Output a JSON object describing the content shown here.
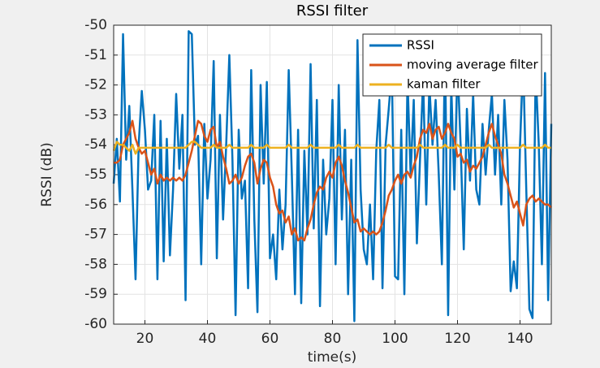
{
  "chart_data": {
    "type": "line",
    "title": "RSSI filter",
    "xlabel": "time(s)",
    "ylabel": "RSSI (dB)",
    "x": [
      10,
      11,
      12,
      13,
      14,
      15,
      16,
      17,
      18,
      19,
      20,
      21,
      22,
      23,
      24,
      25,
      26,
      27,
      28,
      29,
      30,
      31,
      32,
      33,
      34,
      35,
      36,
      37,
      38,
      39,
      40,
      41,
      42,
      43,
      44,
      45,
      46,
      47,
      48,
      49,
      50,
      51,
      52,
      53,
      54,
      55,
      56,
      57,
      58,
      59,
      60,
      61,
      62,
      63,
      64,
      65,
      66,
      67,
      68,
      69,
      70,
      71,
      72,
      73,
      74,
      75,
      76,
      77,
      78,
      79,
      80,
      81,
      82,
      83,
      84,
      85,
      86,
      87,
      88,
      89,
      90,
      91,
      92,
      93,
      94,
      95,
      96,
      97,
      98,
      99,
      100,
      101,
      102,
      103,
      104,
      105,
      106,
      107,
      108,
      109,
      110,
      111,
      112,
      113,
      114,
      115,
      116,
      117,
      118,
      119,
      120,
      121,
      122,
      123,
      124,
      125,
      126,
      127,
      128,
      129,
      130,
      131,
      132,
      133,
      134,
      135,
      136,
      137,
      138,
      139,
      140,
      141,
      142,
      143,
      144,
      145,
      146,
      147,
      148,
      149,
      150
    ],
    "series": [
      {
        "name": "RSSI",
        "color": "#0072BD",
        "values": [
          -55.3,
          -53.8,
          -55.9,
          -50.3,
          -54.5,
          -52.7,
          -55.5,
          -58.5,
          -54.0,
          -52.2,
          -53.5,
          -55.5,
          -55.2,
          -53.0,
          -58.5,
          -53.2,
          -57.9,
          -53.8,
          -57.7,
          -55.5,
          -52.3,
          -54.8,
          -53.0,
          -59.2,
          -50.2,
          -50.3,
          -54.0,
          -53.7,
          -58.0,
          -53.3,
          -55.8,
          -54.5,
          -51.2,
          -57.8,
          -53.0,
          -56.5,
          -54.0,
          -51.0,
          -54.5,
          -59.7,
          -53.5,
          -55.8,
          -55.2,
          -58.8,
          -51.5,
          -56.5,
          -59.6,
          -52.0,
          -55.3,
          -51.9,
          -57.8,
          -57.0,
          -58.5,
          -55.5,
          -57.5,
          -56.0,
          -51.5,
          -55.0,
          -59.0,
          -53.5,
          -59.3,
          -54.2,
          -57.0,
          -51.3,
          -56.8,
          -52.5,
          -59.4,
          -54.5,
          -57.0,
          -55.8,
          -52.5,
          -58.0,
          -52.0,
          -56.5,
          -53.5,
          -59.0,
          -54.5,
          -59.9,
          -50.5,
          -55.5,
          -57.5,
          -58.0,
          -56.0,
          -58.5,
          -54.2,
          -52.5,
          -58.8,
          -54.0,
          -52.8,
          -51.5,
          -58.4,
          -58.5,
          -53.5,
          -59.0,
          -51.8,
          -55.0,
          -52.5,
          -57.3,
          -54.5,
          -51.8,
          -56.0,
          -52.0,
          -54.0,
          -52.5,
          -55.0,
          -58.0,
          -50.6,
          -59.7,
          -52.0,
          -55.5,
          -51.3,
          -54.0,
          -57.5,
          -52.8,
          -55.2,
          -52.3,
          -55.5,
          -56.0,
          -53.3,
          -55.0,
          -53.5,
          -52.3,
          -55.0,
          -53.0,
          -56.0,
          -52.5,
          -54.5,
          -58.9,
          -57.9,
          -58.8,
          -54.0,
          -51.2,
          -55.5,
          -59.5,
          -59.8,
          -51.5,
          -54.0,
          -58.0,
          -51.6,
          -59.2,
          -53.3
        ]
      },
      {
        "name": "moving average filter",
        "color": "#D95319",
        "values": [
          -54.6,
          -54.6,
          -54.5,
          -54.0,
          -53.8,
          -53.6,
          -53.2,
          -53.8,
          -54.1,
          -54.3,
          -54.2,
          -54.6,
          -55.0,
          -54.8,
          -55.3,
          -55.0,
          -55.2,
          -55.1,
          -55.2,
          -55.1,
          -55.2,
          -55.1,
          -55.2,
          -55.0,
          -54.6,
          -54.2,
          -53.7,
          -53.2,
          -53.3,
          -53.7,
          -53.9,
          -53.5,
          -53.4,
          -54.1,
          -53.9,
          -54.4,
          -54.8,
          -55.3,
          -55.2,
          -55.0,
          -55.3,
          -55.1,
          -54.7,
          -54.4,
          -54.3,
          -54.6,
          -55.3,
          -54.8,
          -54.5,
          -54.6,
          -55.1,
          -55.4,
          -56.0,
          -56.3,
          -56.2,
          -56.6,
          -56.4,
          -57.0,
          -56.8,
          -57.2,
          -57.1,
          -57.2,
          -56.8,
          -56.5,
          -56.0,
          -55.6,
          -55.4,
          -55.5,
          -55.1,
          -54.9,
          -55.1,
          -54.6,
          -54.4,
          -54.7,
          -55.2,
          -55.6,
          -56.1,
          -56.6,
          -56.5,
          -56.9,
          -56.8,
          -56.9,
          -57.0,
          -56.9,
          -57.0,
          -56.9,
          -56.6,
          -56.2,
          -55.7,
          -55.5,
          -55.2,
          -55.0,
          -55.3,
          -55.0,
          -54.9,
          -55.1,
          -54.7,
          -54.4,
          -53.8,
          -53.5,
          -53.6,
          -53.3,
          -53.8,
          -53.5,
          -53.4,
          -53.8,
          -53.6,
          -53.3,
          -53.6,
          -53.8,
          -54.4,
          -54.3,
          -54.6,
          -54.5,
          -54.9,
          -54.7,
          -54.8,
          -54.6,
          -54.4,
          -54.0,
          -53.6,
          -53.3,
          -53.7,
          -54.0,
          -54.3,
          -55.0,
          -55.3,
          -55.7,
          -56.1,
          -55.9,
          -56.3,
          -56.7,
          -56.0,
          -55.8,
          -55.7,
          -55.9,
          -55.8,
          -55.9,
          -56.0,
          -56.0,
          -56.1
        ]
      },
      {
        "name": "kaman filter",
        "color": "#EDB120",
        "values": [
          -54.2,
          -53.9,
          -54.0,
          -54.0,
          -54.1,
          -54.2,
          -54.0,
          -54.3,
          -54.1,
          -54.1,
          -54.1,
          -54.1,
          -54.1,
          -54.1,
          -54.1,
          -54.1,
          -54.1,
          -54.1,
          -54.1,
          -54.1,
          -54.1,
          -54.1,
          -54.1,
          -54.1,
          -54.0,
          -53.9,
          -53.9,
          -54.0,
          -54.1,
          -54.1,
          -54.1,
          -54.1,
          -54.0,
          -54.1,
          -54.1,
          -54.1,
          -54.1,
          -54.0,
          -54.1,
          -54.1,
          -54.1,
          -54.1,
          -54.1,
          -54.1,
          -54.0,
          -54.1,
          -54.1,
          -54.1,
          -54.1,
          -54.0,
          -54.1,
          -54.1,
          -54.1,
          -54.1,
          -54.1,
          -54.1,
          -54.0,
          -54.1,
          -54.1,
          -54.1,
          -54.1,
          -54.1,
          -54.1,
          -54.0,
          -54.1,
          -54.1,
          -54.1,
          -54.1,
          -54.1,
          -54.1,
          -54.1,
          -54.1,
          -54.0,
          -54.1,
          -54.1,
          -54.1,
          -54.1,
          -54.1,
          -54.0,
          -54.1,
          -54.1,
          -54.1,
          -54.1,
          -54.1,
          -54.1,
          -54.1,
          -54.1,
          -54.1,
          -54.0,
          -54.1,
          -54.1,
          -54.1,
          -54.1,
          -54.1,
          -54.1,
          -54.1,
          -54.1,
          -54.1,
          -54.0,
          -54.1,
          -54.1,
          -54.1,
          -54.1,
          -54.1,
          -54.1,
          -54.1,
          -54.0,
          -54.1,
          -54.1,
          -54.1,
          -54.0,
          -54.1,
          -54.1,
          -54.1,
          -54.1,
          -54.1,
          -54.1,
          -54.1,
          -54.1,
          -54.1,
          -54.0,
          -54.1,
          -54.1,
          -54.1,
          -54.1,
          -54.1,
          -54.1,
          -54.1,
          -54.1,
          -54.1,
          -54.1,
          -54.0,
          -54.1,
          -54.1,
          -54.1,
          -54.1,
          -54.1,
          -54.1,
          -54.0,
          -54.1,
          -54.1
        ]
      }
    ],
    "xlim": [
      10,
      150
    ],
    "xticks": [
      20,
      40,
      60,
      80,
      100,
      120,
      140
    ],
    "ylim": [
      -60,
      -50
    ],
    "yticks": [
      -60,
      -59,
      -58,
      -57,
      -56,
      -55,
      -54,
      -53,
      -52,
      -51,
      -50
    ],
    "grid": true,
    "legend": "northeast"
  }
}
